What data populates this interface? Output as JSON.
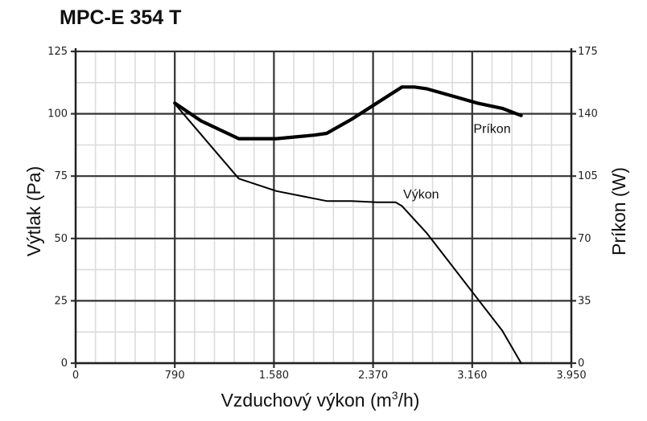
{
  "chart_data": {
    "type": "line",
    "title": "MPC-E 354 T",
    "xlabel": "Vzduchový výkon (m",
    "xlabel_sup": "3",
    "xlabel_end": "/h)",
    "ylabel": "Výtlak (Pa)",
    "y2label": "Príkon (W)",
    "xlim": [
      0,
      3950
    ],
    "ylim": [
      0,
      125
    ],
    "y2lim": [
      0,
      175
    ],
    "x_ticks": [
      0,
      790,
      1580,
      2370,
      3160,
      3950
    ],
    "x_tick_labels": [
      "0",
      "790",
      "1.580",
      "2.370",
      "3.160",
      "3.950"
    ],
    "y_ticks": [
      0,
      25,
      50,
      75,
      100,
      125
    ],
    "y_tick_labels": [
      "0",
      "25",
      "50",
      "75",
      "100",
      "125"
    ],
    "y2_ticks": [
      0,
      35,
      70,
      105,
      140,
      175
    ],
    "y2_tick_labels": [
      "0",
      "35",
      "70",
      "105",
      "140",
      "175"
    ],
    "grid": true,
    "series": [
      {
        "name": "Výkon",
        "axis": "left",
        "x": [
          790,
          1300,
          1600,
          1800,
          2000,
          2200,
          2400,
          2550,
          2600,
          2800,
          3000,
          3200,
          3400,
          3550
        ],
        "y": [
          104,
          74,
          69,
          67,
          65,
          65,
          64.5,
          64.5,
          63,
          52,
          39,
          26,
          13,
          0
        ]
      },
      {
        "name": "Príkon",
        "axis": "right",
        "x": [
          790,
          1000,
          1300,
          1600,
          1900,
          2000,
          2200,
          2400,
          2600,
          2700,
          2800,
          3000,
          3200,
          3400,
          3550
        ],
        "y": [
          146,
          136,
          126,
          126,
          128,
          129,
          137,
          146,
          155,
          155,
          154,
          150,
          146,
          143,
          139
        ]
      }
    ],
    "series_labels": [
      {
        "series": "Príkon",
        "text": "Príkon",
        "x": 3170,
        "y2": 132
      },
      {
        "series": "Výkon",
        "text": "Výkon",
        "x": 2610,
        "y": 68
      }
    ]
  },
  "colors": {
    "major_grid": "#333333",
    "minor_grid": "#dcdcdc",
    "line": "#000000"
  }
}
